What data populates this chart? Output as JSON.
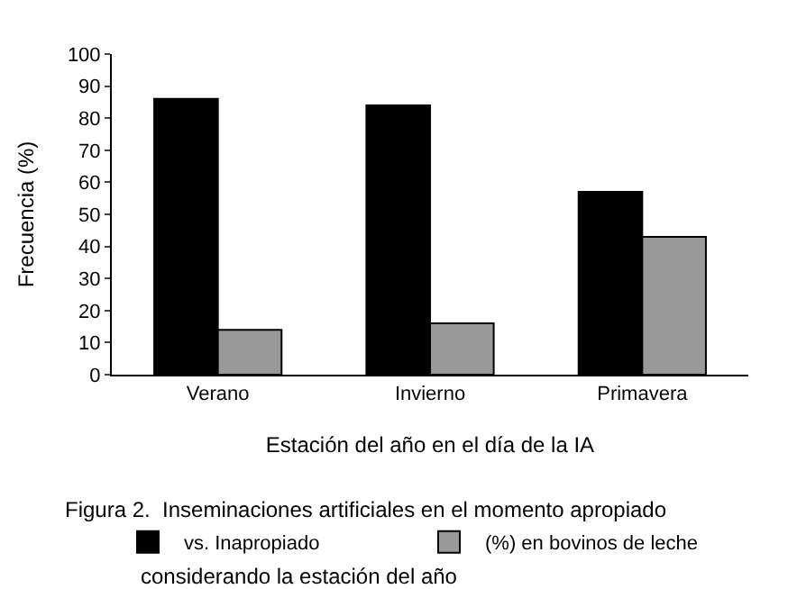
{
  "chart_data": {
    "type": "bar",
    "xlabel": "Estación del año en el día de la IA",
    "ylabel": "Frecuencia (%)",
    "categories": [
      "Verano",
      "Invierno",
      "Primavera"
    ],
    "series": [
      {
        "name": "vs. Inapropiado",
        "color": "#000000",
        "values": [
          86,
          84,
          57
        ]
      },
      {
        "name": "(%) en bovinos de leche",
        "color": "#999999",
        "values": [
          14,
          16,
          43
        ]
      }
    ],
    "ylim": [
      0,
      100
    ],
    "yticks": [
      0,
      10,
      20,
      30,
      40,
      50,
      60,
      70,
      80,
      90,
      100
    ],
    "legend": "bottom",
    "annotations": [
      "Figura 2.  Inseminaciones artificiales en el momento apropiado",
      "considerando la estación del año"
    ]
  }
}
